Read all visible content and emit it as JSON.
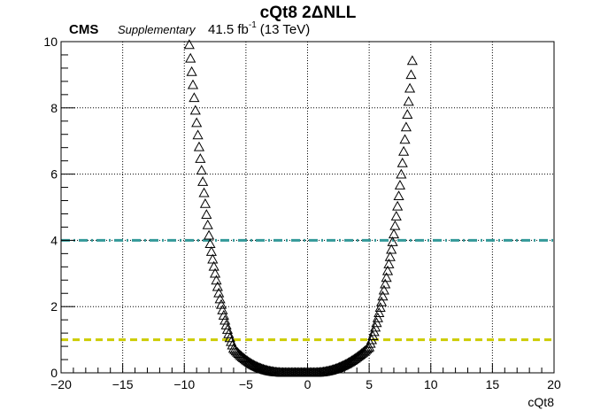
{
  "chart_data": {
    "type": "scatter",
    "title": "cQt8 2ΔNLL",
    "header": {
      "experiment": "CMS",
      "tag": "Supplementary",
      "lumi_value": "41.5 fb",
      "lumi_exp": "-1",
      "energy": "(13 TeV)"
    },
    "xlabel": "cQt8",
    "ylabel": "",
    "xlim": [
      -20,
      20
    ],
    "ylim": [
      0,
      10
    ],
    "x_ticks": [
      -20,
      -15,
      -10,
      -5,
      0,
      5,
      10,
      15,
      20
    ],
    "y_ticks": [
      0,
      2,
      4,
      6,
      8,
      10
    ],
    "grid": true,
    "marker": "open-triangle",
    "reference_lines": [
      {
        "y": 1,
        "color": "#cccc00",
        "style": "dashed"
      },
      {
        "y": 4,
        "color": "#339999",
        "style": "dash-dot"
      }
    ],
    "points_x": [
      -9.6,
      -9.5,
      -9.4,
      -9.3,
      -9.2,
      -9.1,
      -9.0,
      -8.9,
      -8.8,
      -8.7,
      -8.6,
      -8.5,
      -8.4,
      -8.3,
      -8.2,
      -8.1,
      -8.0,
      -7.9,
      -7.8,
      -7.7,
      -7.6,
      -7.5,
      -7.4,
      -7.3,
      -7.2,
      -7.1,
      -7.0,
      -6.9,
      -6.8,
      -6.7,
      -6.6,
      -6.5,
      -6.4,
      -6.3,
      -6.2,
      -6.1,
      -6.0,
      -5.9,
      -5.8,
      -5.7,
      -5.6,
      -5.5,
      -5.4,
      -5.3,
      -5.2,
      -5.1,
      -5.0,
      -4.9,
      -4.8,
      -4.7,
      -4.6,
      -4.5,
      -4.4,
      -4.3,
      -4.2,
      -4.1,
      -4.0,
      -3.9,
      -3.8,
      -3.7,
      -3.6,
      -3.5,
      -3.4,
      -3.3,
      -3.2,
      -3.1,
      -3.0,
      -2.9,
      -2.8,
      -2.7,
      -2.6,
      -2.5,
      -2.4,
      -2.3,
      -2.2,
      -2.1,
      -2.0,
      -1.9,
      -1.8,
      -1.7,
      -1.6,
      -1.5,
      -1.4,
      -1.3,
      -1.2,
      -1.1,
      -1.0,
      -0.9,
      -0.8,
      -0.7,
      -0.6,
      -0.5,
      -0.4,
      -0.3,
      -0.2,
      -0.1,
      0.0,
      0.1,
      0.2,
      0.3,
      0.4,
      0.5,
      0.6,
      0.7,
      0.8,
      0.9,
      1.0,
      1.1,
      1.2,
      1.3,
      1.4,
      1.5,
      1.6,
      1.7,
      1.8,
      1.9,
      2.0,
      2.1,
      2.2,
      2.3,
      2.4,
      2.5,
      2.6,
      2.7,
      2.8,
      2.9,
      3.0,
      3.1,
      3.2,
      3.3,
      3.4,
      3.5,
      3.6,
      3.7,
      3.8,
      3.9,
      4.0,
      4.1,
      4.2,
      4.3,
      4.4,
      4.5,
      4.6,
      4.7,
      4.8,
      4.9,
      5.0,
      5.1,
      5.2,
      5.3,
      5.4,
      5.5,
      5.6,
      5.7,
      5.8,
      5.9,
      6.0,
      6.1,
      6.2,
      6.3,
      6.4,
      6.5,
      6.6,
      6.7,
      6.8,
      6.9,
      7.0,
      7.1,
      7.2,
      7.3,
      7.4,
      7.5,
      7.6,
      7.7,
      7.8,
      7.9,
      8.0,
      8.1,
      8.2,
      8.3,
      8.4,
      8.5,
      8.6,
      8.7
    ],
    "points_y": [
      9.895,
      9.485,
      9.08,
      8.685,
      8.295,
      7.915,
      7.54,
      7.17,
      6.81,
      6.455,
      6.105,
      5.76,
      5.425,
      5.095,
      4.77,
      4.455,
      4.14,
      3.885,
      3.65,
      3.42,
      3.2,
      2.99,
      2.785,
      2.59,
      2.4,
      2.22,
      2.05,
      1.885,
      1.725,
      1.575,
      1.43,
      1.295,
      1.165,
      1.045,
      0.93,
      0.825,
      0.725,
      0.684,
      0.645,
      0.607,
      0.57,
      0.535,
      0.501,
      0.468,
      0.437,
      0.407,
      0.378,
      0.351,
      0.324,
      0.299,
      0.275,
      0.253,
      0.231,
      0.211,
      0.192,
      0.174,
      0.157,
      0.141,
      0.126,
      0.112,
      0.099,
      0.087,
      0.075,
      0.065,
      0.055,
      0.047,
      0.039,
      0.032,
      0.026,
      0.02,
      0.015,
      0.011,
      0.008,
      0.005,
      0.003,
      0.001,
      0.001,
      0.001,
      0.0,
      0.0,
      0.0,
      0.0,
      0.0,
      0.0,
      0.0,
      0.0,
      0.0,
      0.0,
      0.0,
      0.0,
      0.0,
      0.0,
      0.0,
      0.0,
      0.0,
      0.0,
      0.0,
      0.0,
      0.0,
      0.0,
      0.0,
      0.001,
      0.001,
      0.001,
      0.002,
      0.004,
      0.006,
      0.01,
      0.014,
      0.019,
      0.025,
      0.032,
      0.039,
      0.048,
      0.057,
      0.067,
      0.078,
      0.089,
      0.101,
      0.115,
      0.128,
      0.143,
      0.159,
      0.175,
      0.192,
      0.21,
      0.229,
      0.248,
      0.268,
      0.289,
      0.311,
      0.334,
      0.357,
      0.382,
      0.407,
      0.432,
      0.459,
      0.486,
      0.514,
      0.543,
      0.573,
      0.603,
      0.634,
      0.666,
      0.699,
      0.733,
      0.767,
      0.874,
      0.985,
      1.104,
      1.229,
      1.362,
      1.501,
      1.647,
      1.801,
      1.961,
      2.128,
      2.302,
      2.483,
      2.671,
      2.865,
      3.067,
      3.275,
      3.491,
      3.713,
      3.942,
      4.178,
      4.43,
      4.72,
      5.02,
      5.33,
      5.655,
      5.985,
      6.325,
      6.675,
      7.035,
      7.41,
      7.79,
      8.18,
      8.58,
      8.99,
      9.415
    ]
  }
}
